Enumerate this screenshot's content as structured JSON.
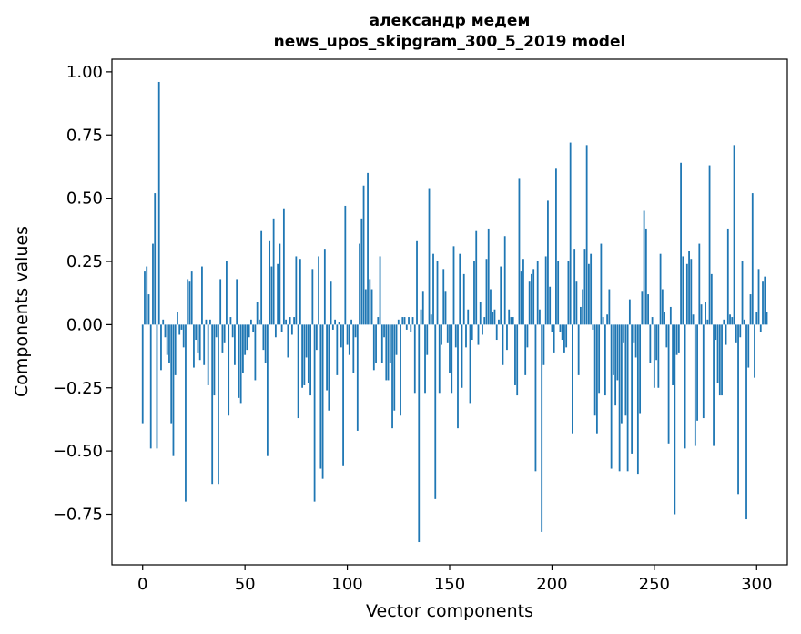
{
  "chart_data": {
    "type": "bar",
    "title": "александр медем",
    "subtitle": "news_upos_skipgram_300_5_2019 model",
    "xlabel": "Vector components",
    "ylabel": "Components values",
    "xlim": [
      -15,
      315
    ],
    "ylim": [
      -0.95,
      1.05
    ],
    "x_ticks": [
      0,
      50,
      100,
      150,
      200,
      250,
      300
    ],
    "x_tick_labels": [
      "0",
      "50",
      "100",
      "150",
      "200",
      "250",
      "300"
    ],
    "y_ticks": [
      1.0,
      0.75,
      0.5,
      0.25,
      0.0,
      -0.25,
      -0.5,
      -0.75
    ],
    "y_tick_labels": [
      "1.00",
      "0.75",
      "0.50",
      "0.25",
      "0.00",
      "−0.25",
      "−0.50",
      "−0.75"
    ],
    "bar_color": "#1f77b4",
    "grid": false,
    "values": [
      -0.39,
      0.21,
      0.23,
      0.12,
      -0.49,
      0.32,
      0.52,
      -0.49,
      0.96,
      -0.18,
      0.02,
      -0.05,
      -0.12,
      -0.15,
      -0.39,
      -0.52,
      -0.2,
      0.05,
      -0.04,
      -0.02,
      -0.09,
      -0.7,
      0.18,
      0.17,
      0.21,
      -0.17,
      -0.06,
      -0.11,
      -0.14,
      0.23,
      -0.16,
      0.02,
      -0.24,
      0.02,
      -0.63,
      -0.28,
      -0.05,
      -0.63,
      0.18,
      -0.11,
      -0.07,
      0.25,
      -0.36,
      0.03,
      -0.05,
      -0.16,
      0.18,
      -0.29,
      -0.31,
      -0.19,
      -0.12,
      -0.1,
      -0.05,
      0.02,
      -0.03,
      -0.22,
      0.09,
      0.02,
      0.37,
      -0.1,
      -0.15,
      -0.52,
      0.33,
      0.23,
      0.42,
      -0.05,
      0.24,
      0.32,
      -0.03,
      0.46,
      0.02,
      -0.13,
      0.03,
      -0.04,
      0.03,
      0.27,
      -0.37,
      0.26,
      -0.25,
      -0.24,
      -0.13,
      -0.23,
      -0.28,
      0.22,
      -0.7,
      -0.1,
      0.27,
      -0.57,
      -0.61,
      0.3,
      -0.26,
      -0.34,
      0.17,
      -0.02,
      0.02,
      -0.2,
      0.01,
      -0.09,
      -0.56,
      0.47,
      -0.08,
      -0.12,
      0.02,
      -0.19,
      -0.05,
      -0.42,
      0.32,
      0.42,
      0.55,
      0.14,
      0.6,
      0.18,
      0.14,
      -0.18,
      -0.15,
      0.03,
      0.27,
      -0.15,
      -0.05,
      -0.22,
      -0.22,
      -0.15,
      -0.41,
      -0.34,
      -0.12,
      0.02,
      -0.36,
      0.03,
      0.03,
      -0.02,
      0.03,
      -0.03,
      0.03,
      -0.27,
      0.33,
      -0.86,
      0.06,
      0.13,
      -0.27,
      -0.12,
      0.54,
      0.04,
      0.28,
      -0.69,
      0.25,
      -0.27,
      -0.08,
      0.22,
      0.13,
      -0.07,
      -0.19,
      -0.27,
      0.31,
      -0.09,
      -0.41,
      0.28,
      -0.25,
      0.2,
      -0.09,
      0.06,
      -0.31,
      -0.06,
      0.25,
      0.37,
      -0.08,
      0.09,
      -0.04,
      0.03,
      0.26,
      0.38,
      0.14,
      0.05,
      0.06,
      -0.06,
      0.02,
      0.23,
      -0.16,
      0.35,
      -0.1,
      0.06,
      0.03,
      0.03,
      -0.24,
      -0.28,
      0.58,
      0.21,
      0.26,
      -0.2,
      -0.09,
      0.17,
      0.2,
      0.22,
      -0.58,
      0.25,
      0.06,
      -0.82,
      -0.16,
      0.27,
      0.49,
      0.15,
      -0.03,
      -0.11,
      0.62,
      0.25,
      -0.03,
      -0.06,
      -0.11,
      -0.09,
      0.25,
      0.72,
      -0.43,
      0.3,
      0.17,
      -0.2,
      0.07,
      0.14,
      0.3,
      0.71,
      0.24,
      0.28,
      -0.02,
      -0.36,
      -0.43,
      -0.27,
      0.32,
      0.03,
      -0.28,
      0.04,
      0.14,
      -0.57,
      -0.2,
      -0.32,
      -0.22,
      -0.58,
      -0.39,
      -0.07,
      -0.36,
      -0.58,
      0.1,
      -0.51,
      -0.07,
      -0.13,
      -0.59,
      -0.35,
      0.13,
      0.45,
      0.38,
      0.12,
      -0.15,
      0.03,
      -0.25,
      -0.14,
      -0.25,
      0.28,
      0.14,
      0.05,
      -0.09,
      -0.47,
      0.07,
      -0.24,
      -0.75,
      -0.12,
      -0.11,
      0.64,
      0.27,
      -0.49,
      0.24,
      0.29,
      0.26,
      0.04,
      -0.48,
      -0.38,
      0.32,
      0.08,
      -0.37,
      0.09,
      0.02,
      0.63,
      0.2,
      -0.48,
      -0.06,
      -0.23,
      -0.28,
      -0.28,
      0.02,
      -0.08,
      0.38,
      0.04,
      0.03,
      0.71,
      -0.07,
      -0.67,
      -0.05,
      0.25,
      0.02,
      -0.77,
      -0.17,
      0.12,
      0.52,
      -0.21,
      0.05,
      0.22,
      -0.03,
      0.17,
      0.19,
      0.05
    ]
  }
}
